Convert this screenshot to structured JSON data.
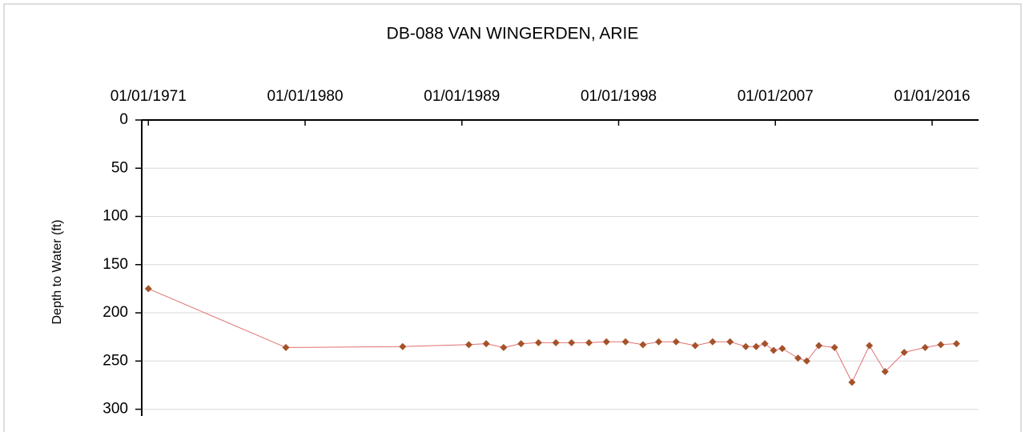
{
  "chart_data": {
    "type": "line",
    "title": "DB-088  VAN WINGERDEN, ARIE",
    "y_label": "Depth to Water (ft)",
    "x": [
      "1971-01-01",
      "1978-11-24",
      "1985-08-08",
      "1989-05-26",
      "1990-05-26",
      "1991-05-26",
      "1992-05-26",
      "1993-05-26",
      "1994-05-26",
      "1995-04-20",
      "1996-04-20",
      "1997-04-20",
      "1998-05-26",
      "1999-05-26",
      "2000-04-20",
      "2001-04-20",
      "2002-05-26",
      "2003-05-26",
      "2004-05-26",
      "2005-04-20",
      "2005-11-24",
      "2006-05-26",
      "2006-11-24",
      "2007-05-26",
      "2008-04-20",
      "2008-10-20",
      "2009-07-01",
      "2010-05-26",
      "2011-05-26",
      "2012-05-26",
      "2013-04-20",
      "2014-05-26",
      "2015-08-08",
      "2016-07-01",
      "2017-05-26"
    ],
    "values": [
      175,
      236,
      235,
      233,
      232,
      236,
      232,
      231,
      231,
      231,
      231,
      230,
      230,
      233,
      230,
      230,
      234,
      230,
      230,
      235,
      235,
      232,
      239,
      237,
      247,
      250,
      234,
      236,
      272,
      234,
      261,
      241,
      236,
      233,
      232
    ],
    "line_color": "#e07070",
    "marker_color": "#a5522a",
    "xlim": [
      "1970-08-15",
      "2018-09-01"
    ],
    "xticks": [
      {
        "value": "1971-01-01",
        "label": "01/01/1971"
      },
      {
        "value": "1980-01-01",
        "label": "01/01/1980"
      },
      {
        "value": "1989-01-01",
        "label": "01/01/1989"
      },
      {
        "value": "1998-01-01",
        "label": "01/01/1998"
      },
      {
        "value": "2007-01-01",
        "label": "01/01/2007"
      },
      {
        "value": "2016-01-01",
        "label": "01/01/2016"
      }
    ],
    "ylim": [
      0,
      307
    ],
    "yticks": [
      0,
      50,
      100,
      150,
      200,
      250,
      300
    ],
    "y_inverted": true,
    "grid": true
  }
}
